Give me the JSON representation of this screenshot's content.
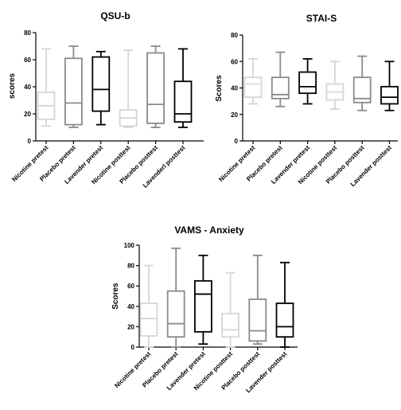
{
  "chart_data": [
    {
      "type": "boxplot",
      "title": "QSU-b",
      "ylabel": "scores",
      "xlabel": "",
      "ylim": [
        0,
        80
      ],
      "yticks": [
        "0",
        "20",
        "40",
        "60",
        "80"
      ],
      "categories": [
        "Nicotine pretest",
        "Placebo  pretest",
        "Lavender pretest",
        "Nicotine posttest",
        "Placebo posttest",
        "Lavenderl posttest"
      ],
      "boxes": [
        {
          "min": 11,
          "q1": 16,
          "median": 26,
          "q3": 36,
          "max": 68
        },
        {
          "min": 10,
          "q1": 12,
          "median": 28,
          "q3": 61,
          "max": 70
        },
        {
          "min": 12,
          "q1": 22,
          "median": 38,
          "q3": 62,
          "max": 66
        },
        {
          "min": 10,
          "q1": 11,
          "median": 17,
          "q3": 23,
          "max": 67
        },
        {
          "min": 10,
          "q1": 13,
          "median": 27,
          "q3": 65,
          "max": 70
        },
        {
          "min": 10,
          "q1": 14,
          "median": 20,
          "q3": 44,
          "max": 68
        }
      ]
    },
    {
      "type": "boxplot",
      "title": "STAI-S",
      "ylabel": "Scores",
      "xlabel": "",
      "ylim": [
        0,
        80
      ],
      "yticks": [
        "0",
        "20",
        "40",
        "60",
        "80"
      ],
      "categories": [
        "Nicotine pretest",
        "Placebo pretest",
        "Lavender pretest",
        "Nicotine posttest",
        "Placebo posttest",
        "Lavender posttest"
      ],
      "boxes": [
        {
          "min": 28,
          "q1": 33,
          "median": 43,
          "q3": 48,
          "max": 62
        },
        {
          "min": 26,
          "q1": 32,
          "median": 35,
          "q3": 48,
          "max": 67
        },
        {
          "min": 28,
          "q1": 36,
          "median": 41,
          "q3": 52,
          "max": 62
        },
        {
          "min": 24,
          "q1": 31,
          "median": 37,
          "q3": 43,
          "max": 60
        },
        {
          "min": 23,
          "q1": 29,
          "median": 32,
          "q3": 48,
          "max": 64
        },
        {
          "min": 23,
          "q1": 28,
          "median": 33,
          "q3": 41,
          "max": 60
        }
      ]
    },
    {
      "type": "boxplot",
      "title": "VAMS - Anxiety",
      "ylabel": "Scores",
      "xlabel": "",
      "ylim": [
        0,
        100
      ],
      "yticks": [
        "0",
        "20",
        "40",
        "60",
        "80",
        "100"
      ],
      "categories": [
        "Nicotine pretest",
        "Placebo pretest",
        "Lavender pretest",
        "Nicotine posttest",
        "Placebo posttest",
        "Lavender posttest"
      ],
      "boxes": [
        {
          "min": 0,
          "q1": 11,
          "median": 28,
          "q3": 43,
          "max": 80
        },
        {
          "min": 0,
          "q1": 10,
          "median": 23,
          "q3": 55,
          "max": 97
        },
        {
          "min": 3,
          "q1": 15,
          "median": 52,
          "q3": 65,
          "max": 90
        },
        {
          "min": 0,
          "q1": 10,
          "median": 17,
          "q3": 33,
          "max": 73
        },
        {
          "min": 3,
          "q1": 6,
          "median": 16,
          "q3": 47,
          "max": 90
        },
        {
          "min": 0,
          "q1": 10,
          "median": 20,
          "q3": 43,
          "max": 83
        }
      ]
    }
  ],
  "colors": {
    "series": [
      "#d6d6d6",
      "#8a8a8a",
      "#000000",
      "#d6d6d6",
      "#8a8a8a",
      "#000000"
    ],
    "axis": "#000000"
  }
}
